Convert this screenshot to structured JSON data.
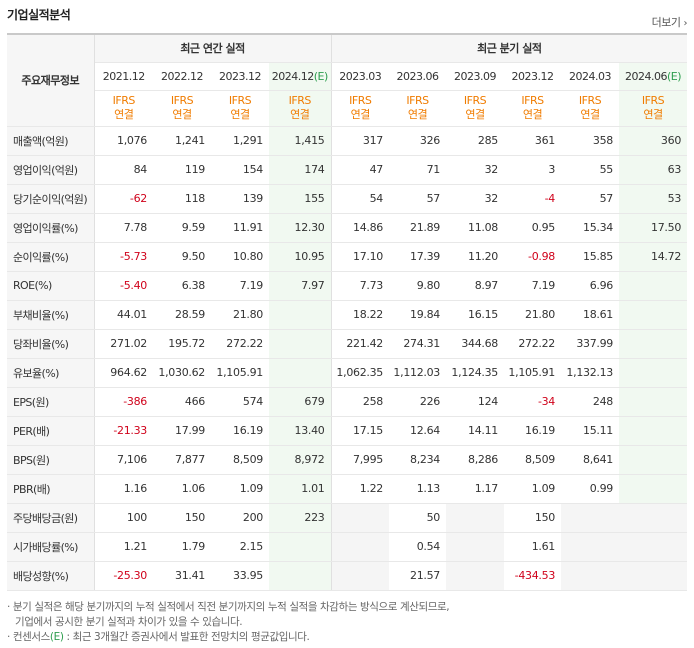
{
  "title": "기업실적분석",
  "more_label": "더보기",
  "header": {
    "corner_label": "주요재무정보",
    "annual_label": "최근 연간 실적",
    "quarterly_label": "최근 분기 실적",
    "annual_periods": [
      "2021.12",
      "2022.12",
      "2023.12",
      "2024.12"
    ],
    "quarterly_periods": [
      "2023.03",
      "2023.06",
      "2023.09",
      "2023.12",
      "2024.03",
      "2024.06"
    ],
    "estimate_mark": "(E)",
    "ifrs_line1": "IFRS",
    "ifrs_line2": "연결"
  },
  "rows": [
    {
      "label": "매출액(억원)",
      "values": [
        "1,076",
        "1,241",
        "1,291",
        "1,415",
        "317",
        "326",
        "285",
        "361",
        "358",
        "360"
      ]
    },
    {
      "label": "영업이익(억원)",
      "values": [
        "84",
        "119",
        "154",
        "174",
        "47",
        "71",
        "32",
        "3",
        "55",
        "63"
      ]
    },
    {
      "label": "당기순이익(억원)",
      "values": [
        "-62",
        "118",
        "139",
        "155",
        "54",
        "57",
        "32",
        "-4",
        "57",
        "53"
      ]
    },
    {
      "label": "영업이익률(%)",
      "values": [
        "7.78",
        "9.59",
        "11.91",
        "12.30",
        "14.86",
        "21.89",
        "11.08",
        "0.95",
        "15.34",
        "17.50"
      ]
    },
    {
      "label": "순이익률(%)",
      "values": [
        "-5.73",
        "9.50",
        "10.80",
        "10.95",
        "17.10",
        "17.39",
        "11.20",
        "-0.98",
        "15.85",
        "14.72"
      ]
    },
    {
      "label": "ROE(%)",
      "values": [
        "-5.40",
        "6.38",
        "7.19",
        "7.97",
        "7.73",
        "9.80",
        "8.97",
        "7.19",
        "6.96",
        ""
      ]
    },
    {
      "label": "부채비율(%)",
      "values": [
        "44.01",
        "28.59",
        "21.80",
        "",
        "18.22",
        "19.84",
        "16.15",
        "21.80",
        "18.61",
        ""
      ]
    },
    {
      "label": "당좌비율(%)",
      "values": [
        "271.02",
        "195.72",
        "272.22",
        "",
        "221.42",
        "274.31",
        "344.68",
        "272.22",
        "337.99",
        ""
      ]
    },
    {
      "label": "유보율(%)",
      "values": [
        "964.62",
        "1,030.62",
        "1,105.91",
        "",
        "1,062.35",
        "1,112.03",
        "1,124.35",
        "1,105.91",
        "1,132.13",
        ""
      ]
    },
    {
      "label": "EPS(원)",
      "values": [
        "-386",
        "466",
        "574",
        "679",
        "258",
        "226",
        "124",
        "-34",
        "248",
        ""
      ]
    },
    {
      "label": "PER(배)",
      "values": [
        "-21.33",
        "17.99",
        "16.19",
        "13.40",
        "17.15",
        "12.64",
        "14.11",
        "16.19",
        "15.11",
        ""
      ]
    },
    {
      "label": "BPS(원)",
      "values": [
        "7,106",
        "7,877",
        "8,509",
        "8,972",
        "7,995",
        "8,234",
        "8,286",
        "8,509",
        "8,641",
        ""
      ]
    },
    {
      "label": "PBR(배)",
      "values": [
        "1.16",
        "1.06",
        "1.09",
        "1.01",
        "1.22",
        "1.13",
        "1.17",
        "1.09",
        "0.99",
        ""
      ]
    },
    {
      "label": "주당배당금(원)",
      "values": [
        "100",
        "150",
        "200",
        "223",
        "",
        "50",
        "",
        "150",
        "",
        ""
      ]
    },
    {
      "label": "시가배당률(%)",
      "values": [
        "1.21",
        "1.79",
        "2.15",
        "",
        "",
        "0.54",
        "",
        "1.61",
        "",
        ""
      ]
    },
    {
      "label": "배당성향(%)",
      "values": [
        "-25.30",
        "31.41",
        "33.95",
        "",
        "",
        "21.57",
        "",
        "-434.53",
        "",
        ""
      ]
    }
  ],
  "notes": {
    "line1": "· 분기 실적은 해당 분기까지의 누적 실적에서 직전 분기까지의 누적 실적을 차감하는 방식으로 계산되므로,",
    "line2": "기업에서 공시한 분기 실적과 차이가 있을 수 있습니다.",
    "line3_prefix": "· 컨센서스",
    "line3_mark": "(E)",
    "line3_suffix": " : 최근 3개월간 증권사에서 발표한 전망치의 평균값입니다."
  },
  "colors": {
    "negative": "#d0021b",
    "ifrs": "#f07c00",
    "estimate_bg": "#f1f9f1",
    "estimate_mark": "#2e9e4f"
  }
}
